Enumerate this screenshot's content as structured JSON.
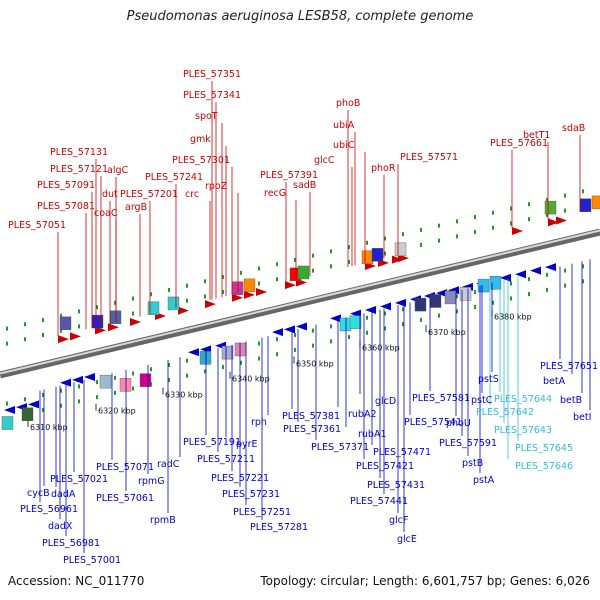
{
  "header": {
    "title": "Pseudomonas aeruginosa LESB58, complete genome"
  },
  "footer": {
    "accession": "Accession: NC_011770",
    "summary": "Topology: circular; Length: 6,601,757 bp; Genes: 6,026"
  },
  "colors": {
    "red": "#cc0000",
    "blue": "#0000cc",
    "cyan": "#33bbdd",
    "backbone": "#999999",
    "tick": "#229922"
  },
  "kbp_labels": [
    "6310 kbp",
    "6320 kbp",
    "6330 kbp",
    "6340 kbp",
    "6350 kbp",
    "6360 kbp",
    "6370 kbp",
    "6380 kbp"
  ],
  "genes": {
    "red": [
      "PLES_57351",
      "PLES_57341",
      "spoT",
      "gmk",
      "PLES_57301",
      "rpoZ",
      "crc",
      "PLES_57241",
      "PLES_57201",
      "argB",
      "PLES_57131",
      "PLES_57121",
      "algC",
      "PLES_57091",
      "dut",
      "coaC",
      "PLES_57081",
      "PLES_57051",
      "PLES_57391",
      "recG",
      "sadB",
      "phoB",
      "ubiA",
      "ubiC",
      "glcC",
      "phoR",
      "PLES_57571",
      "PLES_57661",
      "betT1",
      "sdaB"
    ],
    "blue": [
      "cycB",
      "dadA",
      "PLES_56961",
      "dadX",
      "PLES_56981",
      "PLES_57001",
      "PLES_57021",
      "PLES_57071",
      "PLES_57061",
      "rpmG",
      "rpmB",
      "radC",
      "PLES_57191",
      "pyrE",
      "PLES_57211",
      "PLES_57221",
      "PLES_57231",
      "PLES_57251",
      "PLES_57281",
      "rph",
      "PLES_57381",
      "PLES_57361",
      "PLES_57371",
      "rubA2",
      "rubA1",
      "glcD",
      "PLES_57471",
      "PLES_57421",
      "PLES_57431",
      "PLES_57441",
      "glcF",
      "glcE",
      "PLES_57541",
      "PLES_57581",
      "phoU",
      "PLES_57591",
      "pstB",
      "pstA",
      "pstC",
      "pstS",
      "PLES_57651",
      "betA",
      "betB",
      "betI"
    ],
    "cyan": [
      "PLES_57644",
      "PLES_57642",
      "PLES_57643",
      "PLES_57645",
      "PLES_57646"
    ]
  }
}
